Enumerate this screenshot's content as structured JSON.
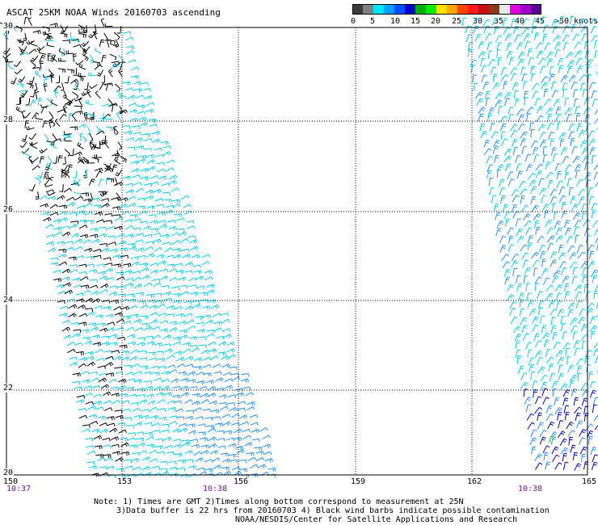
{
  "title": "ASCAT 25KM NOAA Winds 20160703 ascending",
  "colorbar": {
    "colors": [
      "#3c3c3c",
      "#7f7f7f",
      "#00e5ff",
      "#00a0ff",
      "#0050ff",
      "#0000d0",
      "#00b000",
      "#00ee00",
      "#ffe000",
      "#ffa500",
      "#ff4500",
      "#ff1a1a",
      "#c81010",
      "#8b3a1a",
      "#e8e8e8",
      "#e000e0",
      "#a000c8",
      "#5a0090"
    ],
    "labels": [
      "0",
      "5",
      "10",
      "15",
      "20",
      "25",
      "30",
      "35",
      "40",
      "45",
      ">50 knots"
    ]
  },
  "map": {
    "lon_ticks": [
      "150",
      "153",
      "156",
      "159",
      "162",
      "165"
    ],
    "lat_ticks": [
      "30",
      "28",
      "26",
      "24",
      "22",
      "20"
    ],
    "times": [
      "10:37",
      "10:38",
      "10:38"
    ],
    "swath_colors": {
      "contaminated": "#000000",
      "light": "#00ccee",
      "medium": "#1e90ff",
      "strong": "#0000cc",
      "accent": "#00cc00"
    }
  },
  "notes": {
    "line1": "Note: 1) Times are GMT 2)Times along bottom correspond to measurement at 25N",
    "line2": "3)Data buffer is 22 hrs from 20160703 4) Black wind barbs indicate possible contamination",
    "line3": "NOAA/NESDIS/Center for Satellite Applications and Research"
  }
}
